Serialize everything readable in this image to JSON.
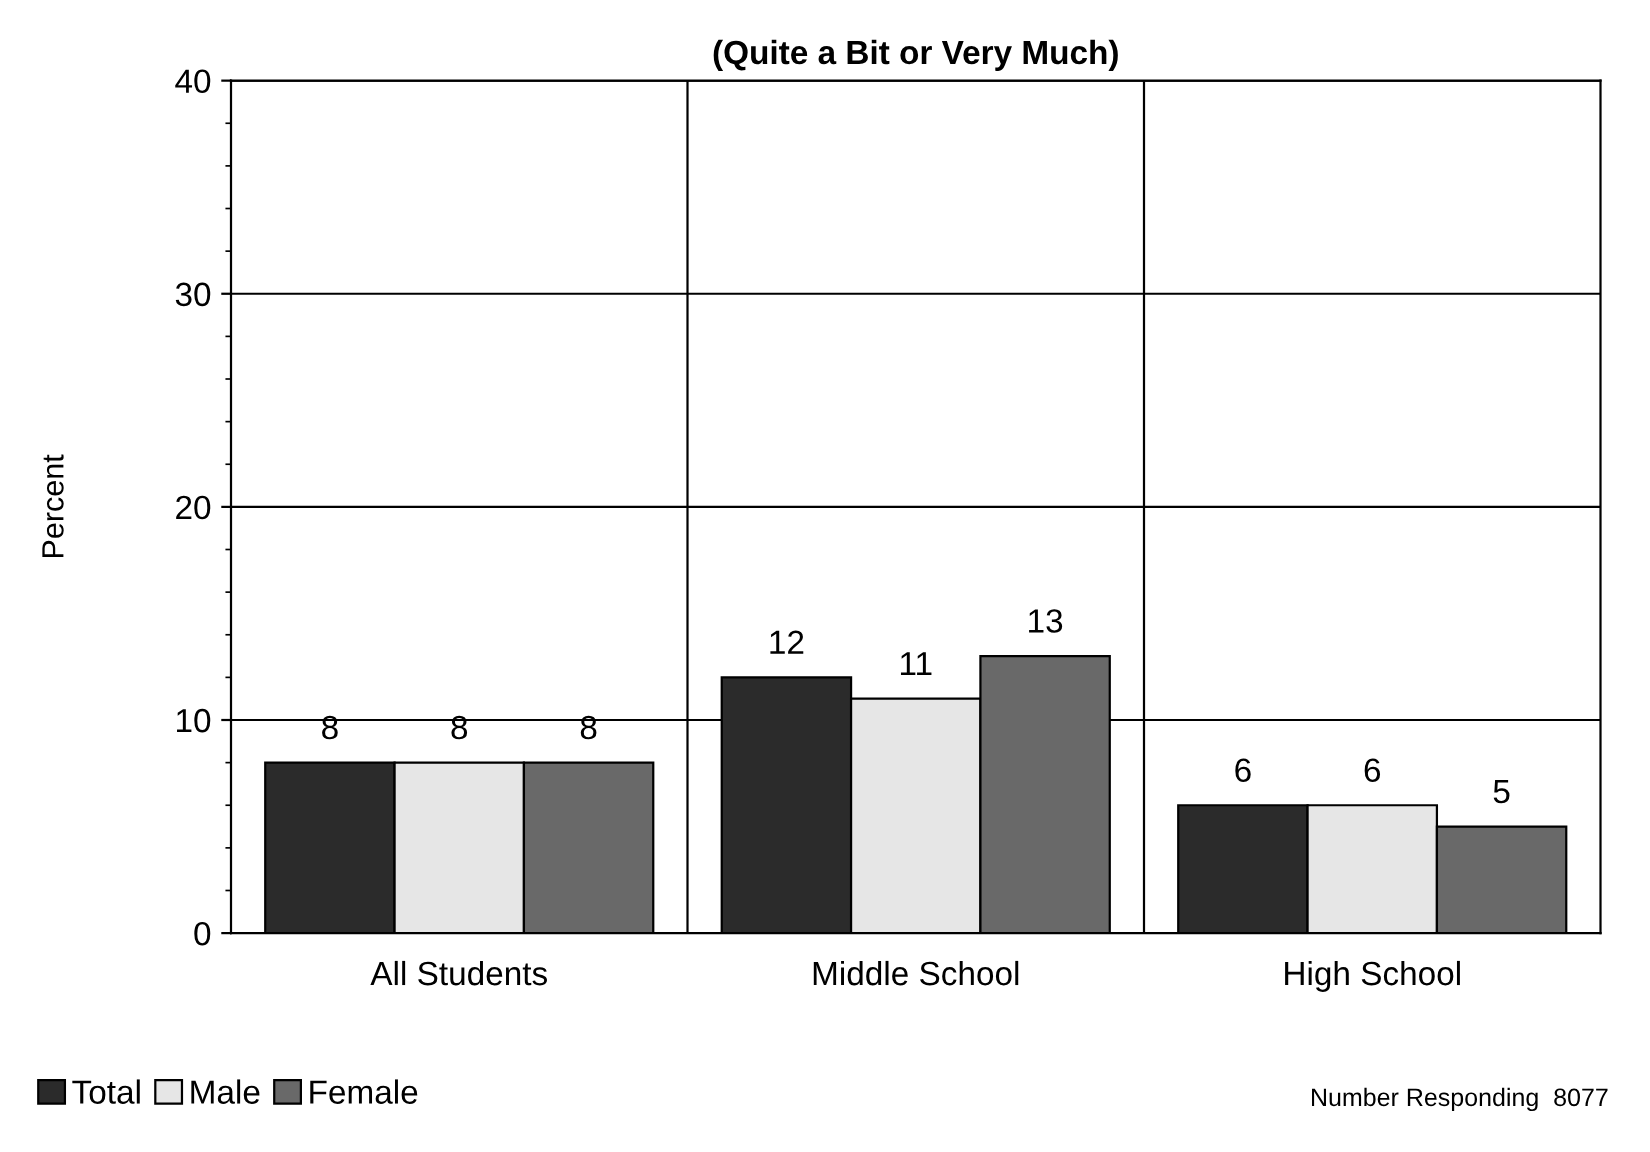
{
  "chart_data": {
    "type": "bar",
    "title": "(Quite a Bit or Very Much)",
    "ylabel": "Percent",
    "categories": [
      "All Students",
      "Middle School",
      "High School"
    ],
    "series": [
      {
        "name": "Total",
        "color": "#2b2b2b",
        "values": [
          8,
          12,
          6
        ]
      },
      {
        "name": "Male",
        "color": "#e6e6e6",
        "values": [
          8,
          11,
          6
        ]
      },
      {
        "name": "Female",
        "color": "#696969",
        "values": [
          8,
          13,
          5
        ]
      }
    ],
    "ylim": [
      0,
      40
    ],
    "yticks": [
      0,
      10,
      20,
      30,
      40
    ],
    "grid": true,
    "legend": "bottom left",
    "data_labels": true,
    "annotations": [
      "Number Responding  8077"
    ]
  }
}
